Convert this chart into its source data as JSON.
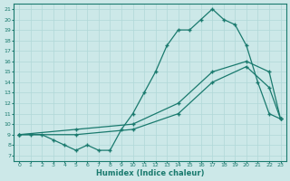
{
  "xlabel": "Humidex (Indice chaleur)",
  "bg_color": "#cce8e8",
  "line_color": "#1a7a6e",
  "grid_color": "#b0d8d8",
  "xlim": [
    -0.5,
    23.5
  ],
  "ylim": [
    6.5,
    21.5
  ],
  "xticks": [
    0,
    1,
    2,
    3,
    4,
    5,
    6,
    7,
    8,
    9,
    10,
    11,
    12,
    13,
    14,
    15,
    16,
    17,
    18,
    19,
    20,
    21,
    22,
    23
  ],
  "yticks": [
    7,
    8,
    9,
    10,
    11,
    12,
    13,
    14,
    15,
    16,
    17,
    18,
    19,
    20,
    21
  ],
  "line1_x": [
    0,
    1,
    2,
    3,
    4,
    5,
    6,
    7,
    8,
    9,
    10,
    11,
    12,
    13,
    14,
    15,
    16,
    17,
    18,
    19,
    20,
    21,
    22,
    23
  ],
  "line1_y": [
    9,
    9,
    9,
    8.5,
    8,
    7.5,
    8,
    7.5,
    7.5,
    9.5,
    11,
    13,
    15,
    17.5,
    19,
    19,
    20,
    21,
    20,
    19.5,
    17.5,
    14,
    11,
    10.5
  ],
  "line2_x": [
    0,
    5,
    10,
    14,
    17,
    20,
    22,
    23
  ],
  "line2_y": [
    9,
    9.5,
    10,
    12,
    15,
    16,
    15,
    10.5
  ],
  "line3_x": [
    0,
    5,
    10,
    14,
    17,
    20,
    22,
    23
  ],
  "line3_y": [
    9,
    9,
    9.5,
    11,
    14,
    15.5,
    13.5,
    10.5
  ]
}
